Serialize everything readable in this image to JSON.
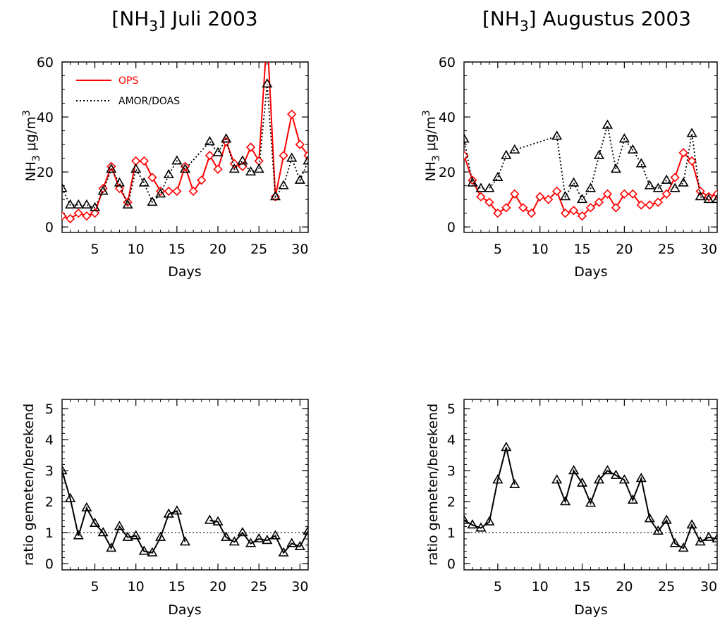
{
  "chart_data": [
    {
      "type": "line",
      "title_main": "[NH",
      "title_sub": "3",
      "title_rest": "] Juli 2003",
      "xlabel": "Days",
      "ylabel_main": "NH",
      "ylabel_sub": "3",
      "ylabel_unit": "μg/m",
      "ylabel_sup": "3",
      "xlim": [
        1,
        31
      ],
      "ylim": [
        -2,
        60
      ],
      "xticks": [
        5,
        10,
        15,
        20,
        25,
        30
      ],
      "yticks": [
        0,
        20,
        40,
        60
      ],
      "legend": {
        "position": "top-left",
        "entries": [
          "OPS",
          "AMOR/DOAS"
        ]
      },
      "series": [
        {
          "name": "OPS",
          "color": "#ff0000",
          "style": "solid",
          "marker": "diamond",
          "x": [
            1,
            2,
            3,
            4,
            5,
            6,
            7,
            8,
            9,
            10,
            11,
            12,
            13,
            14,
            15,
            16,
            17,
            18,
            19,
            20,
            21,
            22,
            23,
            24,
            25,
            26,
            27,
            28,
            29,
            30,
            31
          ],
          "y": [
            4,
            3,
            5,
            4,
            5,
            14,
            22,
            14,
            9,
            24,
            24,
            18,
            13,
            13,
            13,
            22,
            13,
            17,
            26,
            21,
            31,
            23,
            22,
            29,
            24,
            70,
            11,
            26,
            41,
            30,
            26
          ]
        },
        {
          "name": "AMOR/DOAS",
          "color": "#000000",
          "style": "dotted",
          "marker": "triangle",
          "x": [
            1,
            2,
            3,
            4,
            5,
            6,
            7,
            8,
            9,
            10,
            11,
            12,
            13,
            14,
            15,
            16,
            19,
            20,
            21,
            22,
            23,
            24,
            25,
            26,
            27,
            28,
            29,
            30,
            31
          ],
          "y": [
            14,
            8,
            8,
            8,
            7,
            13,
            21,
            16,
            8,
            21,
            16,
            9,
            12,
            19,
            24,
            21,
            31,
            27,
            32,
            21,
            24,
            20,
            21,
            52,
            11,
            15,
            25,
            17,
            24
          ]
        }
      ]
    },
    {
      "type": "line",
      "title_main": "[NH",
      "title_sub": "3",
      "title_rest": "] Augustus 2003",
      "xlabel": "Days",
      "ylabel_main": "NH",
      "ylabel_sub": "3",
      "ylabel_unit": "μg/m",
      "ylabel_sup": "3",
      "xlim": [
        1,
        31
      ],
      "ylim": [
        -2,
        60
      ],
      "xticks": [
        5,
        10,
        15,
        20,
        25,
        30
      ],
      "yticks": [
        0,
        20,
        40,
        60
      ],
      "series": [
        {
          "color": "#ff0000",
          "style": "solid",
          "marker": "diamond",
          "x": [
            1,
            2,
            3,
            4,
            5,
            6,
            7,
            8,
            9,
            10,
            11,
            12,
            13,
            14,
            15,
            16,
            17,
            18,
            19,
            20,
            21,
            22,
            23,
            24,
            25,
            26,
            27,
            28,
            29,
            30,
            31
          ],
          "y": [
            26,
            17,
            11,
            9,
            5,
            7,
            12,
            7,
            5,
            11,
            10,
            13,
            5,
            6,
            4,
            7,
            9,
            12,
            7,
            12,
            12,
            8,
            8,
            9,
            12,
            18,
            27,
            24,
            13,
            11,
            12
          ]
        },
        {
          "color": "#000000",
          "style": "dotted",
          "marker": "triangle",
          "x": [
            1,
            2,
            3,
            4,
            5,
            6,
            7,
            12,
            13,
            14,
            15,
            16,
            17,
            18,
            19,
            20,
            21,
            22,
            23,
            24,
            25,
            26,
            27,
            28,
            29,
            30,
            31
          ],
          "y": [
            32,
            16,
            14,
            14,
            18,
            26,
            28,
            33,
            11,
            16,
            10,
            14,
            26,
            37,
            21,
            32,
            28,
            23,
            15,
            14,
            17,
            14,
            16,
            34,
            11,
            10,
            10
          ]
        }
      ]
    },
    {
      "type": "line",
      "xlabel": "Days",
      "ylabel": "ratio gemeten/berekend",
      "xlim": [
        1,
        31
      ],
      "ylim": [
        -0.2,
        5.3
      ],
      "xticks": [
        5,
        10,
        15,
        20,
        25,
        30
      ],
      "yticks": [
        0,
        1,
        2,
        3,
        4,
        5
      ],
      "reference_line": 1,
      "series": [
        {
          "color": "#000000",
          "style": "solid",
          "marker": "triangle",
          "segments": [
            {
              "x": [
                1,
                2,
                3,
                4,
                5,
                6,
                7,
                8,
                9,
                10,
                11,
                12,
                13,
                14,
                15,
                16
              ],
              "y": [
                3.0,
                2.1,
                0.9,
                1.8,
                1.3,
                1.0,
                0.5,
                1.2,
                0.85,
                0.9,
                0.4,
                0.35,
                0.85,
                1.6,
                1.7,
                0.7
              ]
            },
            {
              "x": [
                19,
                20,
                21,
                22,
                23,
                24,
                25,
                26,
                27,
                28,
                29,
                30,
                31
              ],
              "y": [
                1.4,
                1.35,
                0.85,
                0.7,
                1.0,
                0.65,
                0.8,
                0.75,
                0.9,
                0.35,
                0.65,
                0.55,
                1.05
              ]
            }
          ]
        }
      ]
    },
    {
      "type": "line",
      "xlabel": "Days",
      "ylabel": "ratio gemeten/berekend",
      "xlim": [
        1,
        31
      ],
      "ylim": [
        -0.2,
        5.3
      ],
      "xticks": [
        5,
        10,
        15,
        20,
        25,
        30
      ],
      "yticks": [
        0,
        1,
        2,
        3,
        4,
        5
      ],
      "reference_line": 1,
      "series": [
        {
          "color": "#000000",
          "style": "solid",
          "marker": "triangle",
          "segments": [
            {
              "x": [
                1,
                2,
                3,
                4,
                5,
                6,
                7
              ],
              "y": [
                1.4,
                1.25,
                1.15,
                1.35,
                2.7,
                3.75,
                2.55
              ]
            },
            {
              "x": [
                12,
                13,
                14,
                15,
                16,
                17,
                18,
                19,
                20,
                21,
                22,
                23,
                24,
                25,
                26,
                27,
                28,
                29,
                30,
                31
              ],
              "y": [
                2.7,
                2.0,
                3.0,
                2.6,
                1.95,
                2.7,
                3.0,
                2.85,
                2.7,
                2.05,
                2.75,
                1.45,
                1.05,
                1.4,
                0.65,
                0.5,
                1.25,
                0.7,
                0.85,
                0.8
              ]
            }
          ]
        }
      ]
    }
  ]
}
